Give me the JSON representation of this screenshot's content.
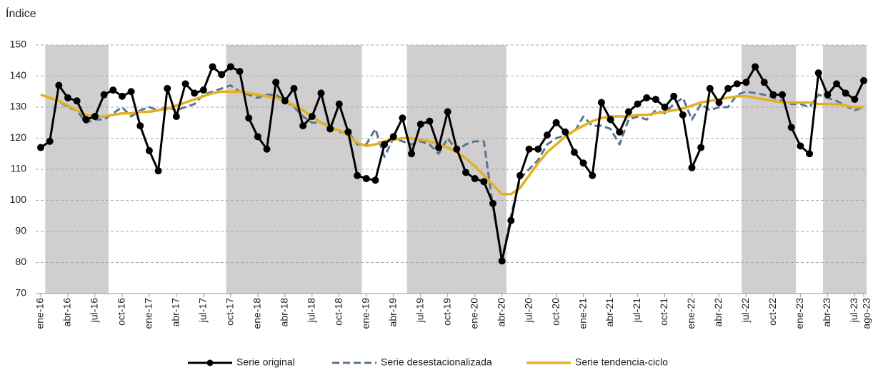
{
  "chart_data": {
    "type": "line",
    "y_axis_label": "Índice",
    "categories": [
      "ene-16",
      null,
      null,
      "abr-16",
      null,
      null,
      "jul-16",
      null,
      null,
      "oct-16",
      null,
      null,
      "ene-17",
      null,
      null,
      "abr-17",
      null,
      null,
      "jul-17",
      null,
      null,
      "oct-17",
      null,
      null,
      "ene-18",
      null,
      null,
      "abr-18",
      null,
      null,
      "jul-18",
      null,
      null,
      "oct-18",
      null,
      null,
      "ene-19",
      null,
      null,
      "abr-19",
      null,
      null,
      "jul-19",
      null,
      null,
      "oct-19",
      null,
      null,
      "ene-20",
      null,
      null,
      "abr-20",
      null,
      null,
      "jul-20",
      null,
      null,
      "oct-20",
      null,
      null,
      "ene-21",
      null,
      null,
      "abr-21",
      null,
      null,
      "jul-21",
      null,
      null,
      "oct-21",
      null,
      null,
      "ene-22",
      null,
      null,
      "abr-22",
      null,
      null,
      "jul-22",
      null,
      null,
      "oct-22",
      null,
      null,
      "ene-23",
      null,
      null,
      "abr-23",
      null,
      null,
      "jul-23",
      "ago-23"
    ],
    "series": [
      {
        "name": "Serie original",
        "color": "#000000",
        "style": "solid-markers",
        "values": [
          117,
          119,
          137,
          133,
          132,
          126,
          127,
          134,
          135.5,
          133.5,
          135,
          124,
          116,
          109.5,
          136,
          127,
          137.5,
          134.5,
          135.5,
          143,
          140.5,
          143,
          141.5,
          126.5,
          120.5,
          116.5,
          138,
          132,
          136,
          124,
          127,
          134.5,
          123,
          131,
          122,
          108,
          107,
          106.5,
          118,
          120.5,
          126.5,
          115,
          124.5,
          125.5,
          117,
          128.5,
          116.5,
          109,
          107,
          106,
          99,
          80.5,
          93.5,
          108,
          116.5,
          116.5,
          121,
          125,
          122,
          115.5,
          112,
          108,
          131.5,
          126,
          122,
          128.5,
          131,
          133,
          132.5,
          130,
          133.5,
          127.5,
          110.5,
          117,
          136,
          131.5,
          136,
          137.5,
          138,
          143,
          138,
          134,
          134,
          123.5,
          117.5,
          115,
          141,
          134,
          137.5,
          134.5,
          132.5,
          138.5
        ]
      },
      {
        "name": "Serie desestacionalizada",
        "color": "#5b7590",
        "style": "dashed",
        "values": [
          134,
          133,
          132,
          130,
          129,
          125,
          126,
          126,
          128,
          130,
          127,
          129,
          130,
          129,
          130,
          129,
          130,
          131,
          134,
          135,
          136,
          137,
          135,
          134,
          133,
          134,
          134,
          132,
          130,
          127,
          125,
          125,
          124,
          122,
          122,
          118,
          118,
          123,
          114,
          120,
          119,
          118,
          119,
          118,
          115,
          120,
          116,
          118,
          119,
          119,
          98,
          81,
          95,
          107,
          110,
          113,
          118,
          120,
          121,
          122,
          127,
          124,
          124,
          123,
          118,
          126,
          127,
          126,
          129,
          128,
          131,
          133,
          126,
          131,
          129,
          130,
          130,
          134,
          135,
          134.5,
          134,
          133,
          132,
          131,
          131,
          130,
          134,
          133,
          132,
          130.5,
          129,
          130
        ]
      },
      {
        "name": "Serie tendencia-ciclo",
        "color": "#e2b11f",
        "style": "thick",
        "values": [
          134,
          133,
          132,
          130.5,
          129,
          127.5,
          127,
          127,
          127.5,
          128,
          128,
          128.5,
          128.5,
          129,
          129.5,
          130.5,
          131.5,
          132.5,
          133.5,
          134.5,
          135,
          135,
          135,
          134.5,
          134,
          133.5,
          133,
          132,
          130.5,
          129,
          127,
          125,
          123.5,
          122.5,
          121,
          118.5,
          117.5,
          118,
          119,
          119.5,
          120,
          120,
          119.5,
          119,
          118,
          117,
          115.5,
          113.5,
          111,
          108,
          105,
          102,
          102,
          104,
          108,
          112,
          115.5,
          118,
          120.5,
          122.5,
          124,
          125.5,
          126.5,
          127,
          127,
          127,
          127.5,
          127.5,
          128,
          128.5,
          129,
          129.5,
          130.5,
          131.5,
          132,
          132.5,
          133,
          133.5,
          133.5,
          133,
          132.5,
          132,
          131.5,
          131.5,
          131.5,
          131.5,
          131,
          131,
          131,
          130.5,
          130,
          130
        ]
      }
    ],
    "shaded_periods": [
      [
        0.5,
        7.5
      ],
      [
        20.5,
        35.5
      ],
      [
        40.5,
        51.5
      ],
      [
        77.5,
        83.5
      ],
      [
        86.5,
        91.5
      ]
    ],
    "shade_color": "#d0cece",
    "ylim": [
      70,
      150
    ],
    "yticks": [
      70,
      80,
      90,
      100,
      110,
      120,
      130,
      140,
      150
    ],
    "grid": true
  }
}
